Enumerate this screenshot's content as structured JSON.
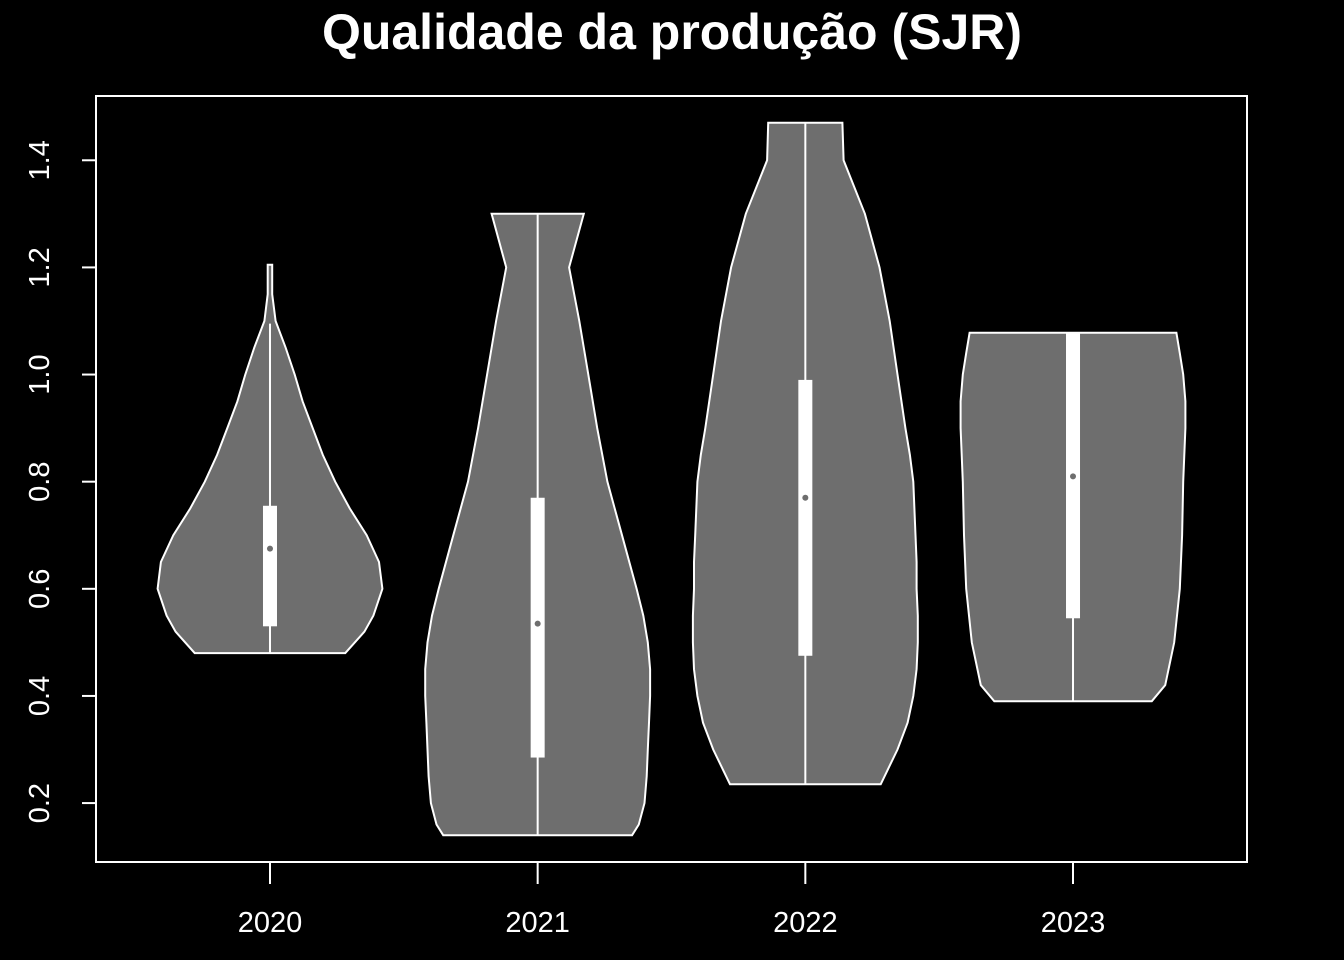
{
  "chart_data": {
    "type": "violin",
    "title": "Qualidade da produção (SJR)",
    "xlabel": "",
    "ylabel": "",
    "categories": [
      "2020",
      "2021",
      "2022",
      "2023"
    ],
    "ylim": [
      0.09,
      1.52
    ],
    "yticks": [
      0.2,
      0.4,
      0.6,
      0.8,
      1.0,
      1.2,
      1.4
    ],
    "ytick_labels": [
      "0.2",
      "0.4",
      "0.6",
      "0.8",
      "1.0",
      "1.2",
      "1.4"
    ],
    "grid": false,
    "legend": "none",
    "colors": {
      "background": "#000000",
      "violin_fill": "#6e6e6e",
      "stroke": "#ffffff"
    },
    "violins": [
      {
        "category": "2020",
        "min": 0.48,
        "max": 1.205,
        "q1": 0.53,
        "median": 0.675,
        "q3": 0.755,
        "whisker_high": 1.095,
        "profile": [
          [
            0.48,
            0.67
          ],
          [
            0.52,
            0.84
          ],
          [
            0.55,
            0.92
          ],
          [
            0.6,
            1.0
          ],
          [
            0.65,
            0.97
          ],
          [
            0.7,
            0.86
          ],
          [
            0.75,
            0.71
          ],
          [
            0.8,
            0.58
          ],
          [
            0.85,
            0.47
          ],
          [
            0.9,
            0.38
          ],
          [
            0.95,
            0.29
          ],
          [
            1.0,
            0.22
          ],
          [
            1.05,
            0.14
          ],
          [
            1.1,
            0.05
          ],
          [
            1.15,
            0.02
          ],
          [
            1.205,
            0.02
          ]
        ]
      },
      {
        "category": "2021",
        "min": 0.14,
        "max": 1.3,
        "q1": 0.285,
        "median": 0.535,
        "q3": 0.77,
        "whisker_high": 1.3,
        "profile": [
          [
            0.14,
            0.84
          ],
          [
            0.16,
            0.9
          ],
          [
            0.2,
            0.95
          ],
          [
            0.25,
            0.97
          ],
          [
            0.3,
            0.98
          ],
          [
            0.35,
            0.99
          ],
          [
            0.4,
            1.0
          ],
          [
            0.45,
            1.0
          ],
          [
            0.5,
            0.98
          ],
          [
            0.55,
            0.94
          ],
          [
            0.6,
            0.88
          ],
          [
            0.7,
            0.75
          ],
          [
            0.8,
            0.62
          ],
          [
            0.9,
            0.53
          ],
          [
            1.0,
            0.45
          ],
          [
            1.1,
            0.37
          ],
          [
            1.2,
            0.28
          ],
          [
            1.3,
            0.41
          ]
        ]
      },
      {
        "category": "2022",
        "min": 0.235,
        "max": 1.47,
        "q1": 0.475,
        "median": 0.77,
        "q3": 0.99,
        "whisker_high": 1.47,
        "profile": [
          [
            0.235,
            0.67
          ],
          [
            0.3,
            0.82
          ],
          [
            0.35,
            0.91
          ],
          [
            0.4,
            0.96
          ],
          [
            0.45,
            0.99
          ],
          [
            0.5,
            1.0
          ],
          [
            0.55,
            1.0
          ],
          [
            0.6,
            0.99
          ],
          [
            0.65,
            0.99
          ],
          [
            0.7,
            0.98
          ],
          [
            0.75,
            0.97
          ],
          [
            0.8,
            0.96
          ],
          [
            0.85,
            0.93
          ],
          [
            0.9,
            0.89
          ],
          [
            1.0,
            0.82
          ],
          [
            1.1,
            0.75
          ],
          [
            1.2,
            0.66
          ],
          [
            1.3,
            0.53
          ],
          [
            1.4,
            0.34
          ],
          [
            1.47,
            0.33
          ]
        ]
      },
      {
        "category": "2023",
        "min": 0.39,
        "max": 1.078,
        "q1": 0.545,
        "median": 0.81,
        "q3": 1.078,
        "whisker_high": 1.078,
        "profile": [
          [
            0.39,
            0.7
          ],
          [
            0.42,
            0.82
          ],
          [
            0.5,
            0.9
          ],
          [
            0.6,
            0.95
          ],
          [
            0.7,
            0.97
          ],
          [
            0.8,
            0.98
          ],
          [
            0.9,
            1.0
          ],
          [
            0.95,
            1.0
          ],
          [
            1.0,
            0.98
          ],
          [
            1.04,
            0.95
          ],
          [
            1.078,
            0.92
          ]
        ]
      }
    ]
  }
}
